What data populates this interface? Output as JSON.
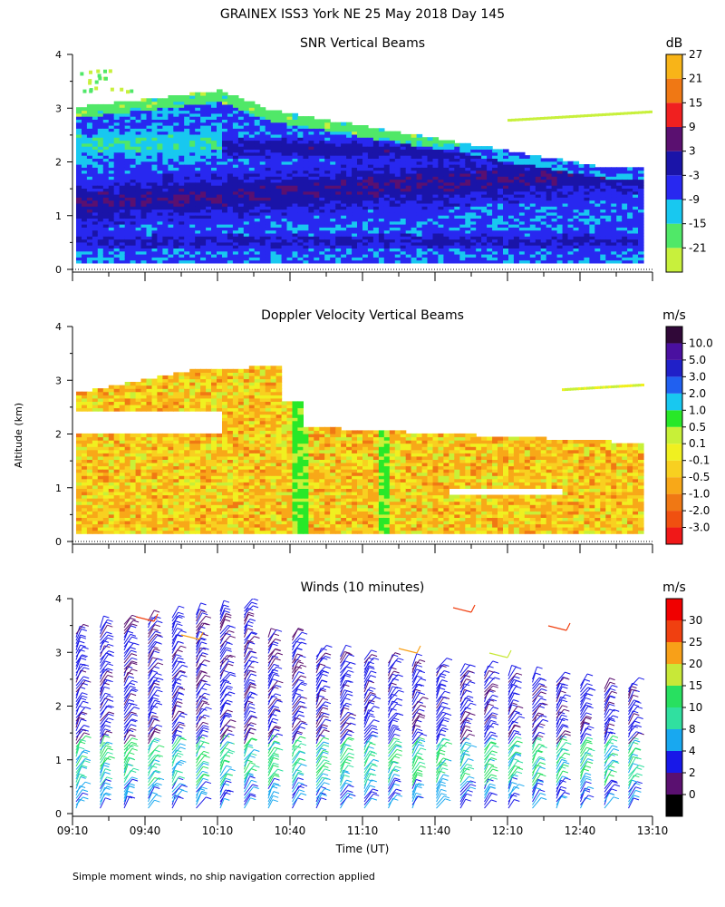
{
  "title": "GRAINEX ISS3 York NE  25 May 2018 Day 145",
  "footnote": "Simple moment winds, no ship navigation correction applied",
  "y_axis_label": "Altitude (km)",
  "x_axis_label": "Time (UT)",
  "chart_data": [
    {
      "type": "heatmap",
      "title": "SNR Vertical Beams",
      "ylim": [
        0,
        4
      ],
      "y_ticks": [
        "0",
        "1",
        "2",
        "3",
        "4"
      ],
      "time_range": [
        "09:10",
        "13:10"
      ],
      "colorbar": {
        "unit": "dB",
        "labels": [
          "-21",
          "-15",
          "-9",
          "-3",
          "3",
          "9",
          "15",
          "21",
          "27"
        ],
        "colors": [
          "#c8f03c",
          "#50e868",
          "#18c8f0",
          "#2828f0",
          "#1a14a8",
          "#5a1070",
          "#f02020",
          "#f07814",
          "#f8b418"
        ]
      }
    },
    {
      "type": "heatmap",
      "title": "Doppler Velocity Vertical Beams",
      "ylim": [
        0,
        4
      ],
      "y_ticks": [
        "0",
        "1",
        "2",
        "3",
        "4"
      ],
      "time_range": [
        "09:10",
        "13:10"
      ],
      "colorbar": {
        "unit": "m/s",
        "labels": [
          "-3.0",
          "-2.0",
          "-1.0",
          "-0.5",
          "-0.1",
          "0.1",
          "0.5",
          "1.0",
          "2.0",
          "3.0",
          "5.0",
          "10.0"
        ],
        "colors": [
          "#f01818",
          "#f05010",
          "#f07814",
          "#f8a818",
          "#f8d020",
          "#f0f020",
          "#c8f038",
          "#28e828",
          "#18c8f0",
          "#2060f0",
          "#2020c8",
          "#4a10a0",
          "#300838"
        ]
      }
    },
    {
      "type": "scatter",
      "title": "Winds (10 minutes)",
      "ylim": [
        0,
        4
      ],
      "y_ticks": [
        "0",
        "1",
        "2",
        "3",
        "4"
      ],
      "x_ticks": [
        "09:10",
        "09:40",
        "10:10",
        "10:40",
        "11:10",
        "11:40",
        "12:10",
        "12:40",
        "13:10"
      ],
      "colorbar": {
        "unit": "m/s",
        "labels": [
          "0",
          "2",
          "4",
          "8",
          "10",
          "15",
          "20",
          "25",
          "30"
        ],
        "colors": [
          "#000000",
          "#5a1070",
          "#1818e8",
          "#18a8f0",
          "#30e0a0",
          "#28e060",
          "#c8e838",
          "#f8a018",
          "#f04010",
          "#f00000"
        ]
      }
    }
  ]
}
